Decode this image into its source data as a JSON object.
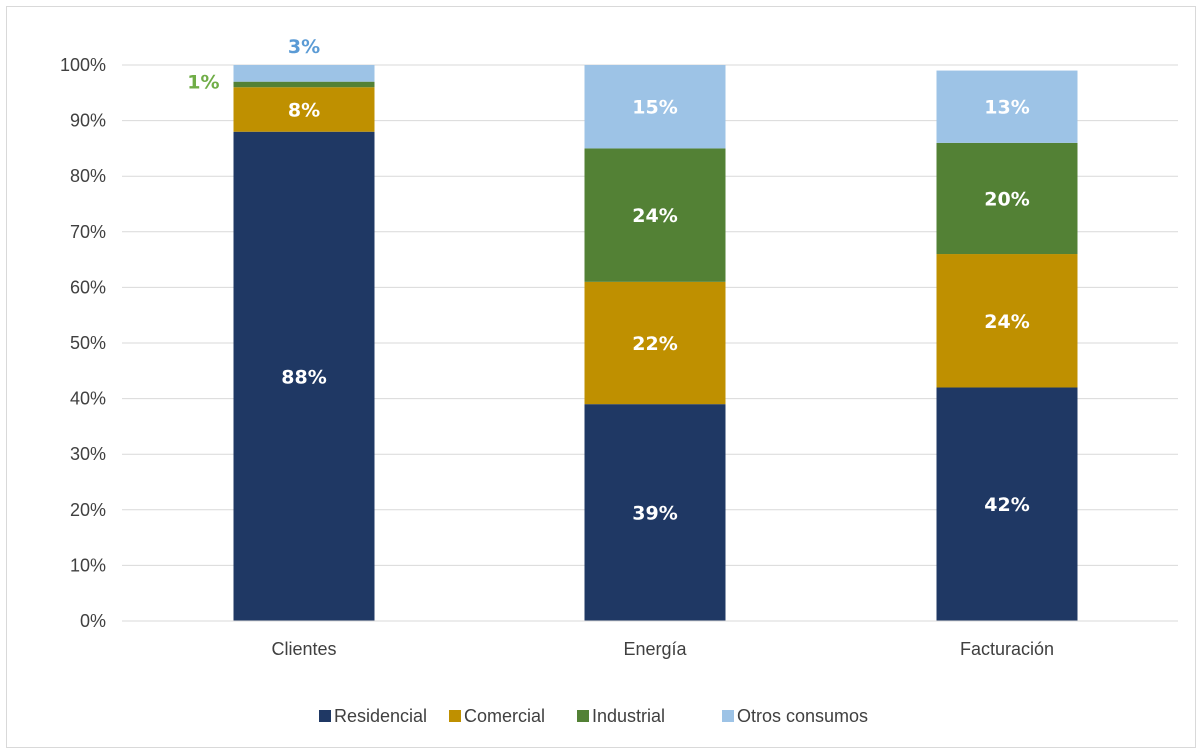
{
  "chart_data": {
    "type": "bar",
    "stacked": true,
    "percent_stacked": true,
    "title": "",
    "xlabel": "",
    "ylabel": "",
    "ylim": [
      0,
      100
    ],
    "y_ticks": [
      "0%",
      "10%",
      "20%",
      "30%",
      "40%",
      "50%",
      "60%",
      "70%",
      "80%",
      "90%",
      "100%"
    ],
    "grid": true,
    "legend_position": "bottom",
    "categories": [
      "Clientes",
      "Energía",
      "Facturación"
    ],
    "series": [
      {
        "name": "Residencial",
        "color": "#1f3864",
        "values": [
          88,
          39,
          42
        ],
        "labels": [
          "88%",
          "39%",
          "42%"
        ]
      },
      {
        "name": "Comercial",
        "color": "#bf9000",
        "values": [
          8,
          22,
          24
        ],
        "labels": [
          "8%",
          "22%",
          "24%"
        ]
      },
      {
        "name": "Industrial",
        "color": "#538135",
        "values": [
          1,
          24,
          20
        ],
        "labels": [
          "1%",
          "24%",
          "20%"
        ]
      },
      {
        "name": "Otros consumos",
        "color": "#9dc3e6",
        "values": [
          3,
          15,
          13
        ],
        "labels": [
          "3%",
          "15%",
          "13%"
        ]
      }
    ]
  }
}
